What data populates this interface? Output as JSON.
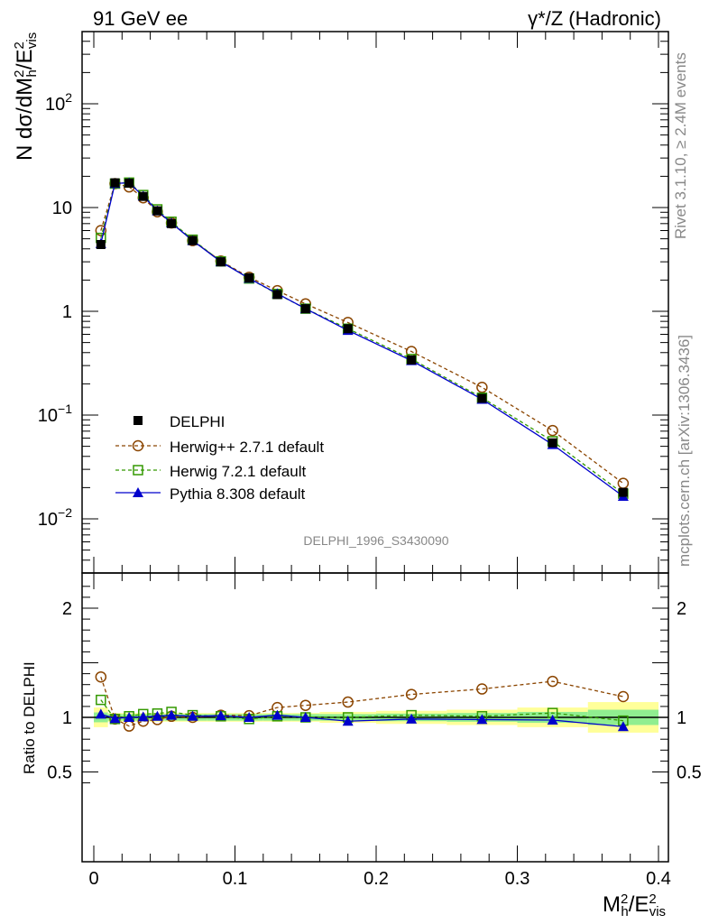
{
  "header": {
    "left": "91 GeV ee",
    "right": "γ*/Z (Hadronic)"
  },
  "side_text": {
    "rivet": "Rivet 3.1.10, ≥ 2.4M events",
    "mcplots": "mcplots.cern.ch [arXiv:1306.3436]"
  },
  "watermark": "DELPHI_1996_S3430090",
  "colors": {
    "delphi": "#000000",
    "herwigpp": "#8B4500",
    "herwig7": "#339900",
    "pythia": "#0000CC",
    "band_inner": "#90EE90",
    "band_outer": "#FFFF99"
  },
  "chart_data": [
    {
      "type": "line",
      "panel": "main",
      "yscale": "log",
      "ylabel": "N dσ/dM²h/E²vis",
      "xlim": [
        -0.01,
        0.4
      ],
      "ylim": [
        0.003,
        500
      ],
      "y_ticks": [
        "10⁻²",
        "10⁻¹",
        "1",
        "10",
        "10²"
      ],
      "x": [
        0.005,
        0.015,
        0.025,
        0.035,
        0.045,
        0.055,
        0.07,
        0.09,
        0.11,
        0.13,
        0.15,
        0.18,
        0.225,
        0.275,
        0.325,
        0.375
      ],
      "series": [
        {
          "name": "DELPHI",
          "marker": "filled-square",
          "values": [
            4.4,
            17.3,
            17.2,
            12.8,
            9.3,
            7.0,
            4.8,
            3.0,
            2.1,
            1.45,
            1.06,
            0.68,
            0.34,
            0.145,
            0.054,
            0.018
          ]
        },
        {
          "name": "Herwig++ 2.7.1 default",
          "marker": "open-circle",
          "values": [
            6.0,
            17.0,
            15.8,
            12.4,
            9.1,
            7.1,
            4.8,
            3.05,
            2.13,
            1.58,
            1.18,
            0.78,
            0.41,
            0.185,
            0.071,
            0.022
          ]
        },
        {
          "name": "Herwig 7.2.1 default",
          "marker": "open-square",
          "values": [
            5.1,
            17.0,
            17.4,
            13.2,
            9.6,
            7.3,
            4.9,
            3.03,
            2.07,
            1.47,
            1.06,
            0.68,
            0.347,
            0.147,
            0.056,
            0.0175
          ]
        },
        {
          "name": "Pythia 8.308 default",
          "marker": "filled-triangle",
          "values": [
            4.5,
            17.1,
            17.3,
            12.9,
            9.3,
            7.1,
            4.8,
            3.0,
            2.08,
            1.48,
            1.06,
            0.655,
            0.335,
            0.142,
            0.052,
            0.0165
          ]
        }
      ]
    },
    {
      "type": "line",
      "panel": "ratio",
      "ylabel": "Ratio to DELPHI",
      "xlabel": "M²h/E²vis",
      "xlim": [
        -0.01,
        0.4
      ],
      "ylim": [
        0.35,
        2.25
      ],
      "y_ticks": [
        "0.5",
        "1",
        "2"
      ],
      "x_ticks": [
        "0",
        "0.1",
        "0.2",
        "0.3",
        "0.4"
      ],
      "x": [
        0.005,
        0.015,
        0.025,
        0.035,
        0.045,
        0.055,
        0.07,
        0.09,
        0.11,
        0.13,
        0.15,
        0.18,
        0.225,
        0.275,
        0.325,
        0.375
      ],
      "bins": [
        0,
        0.01,
        0.02,
        0.03,
        0.04,
        0.05,
        0.06,
        0.08,
        0.1,
        0.12,
        0.14,
        0.16,
        0.2,
        0.25,
        0.3,
        0.35,
        0.4
      ],
      "band_inner": [
        0.045,
        0.03,
        0.03,
        0.03,
        0.03,
        0.03,
        0.03,
        0.03,
        0.03,
        0.03,
        0.03,
        0.03,
        0.035,
        0.04,
        0.05,
        0.07
      ],
      "band_outer": [
        0.09,
        0.04,
        0.04,
        0.04,
        0.04,
        0.04,
        0.04,
        0.04,
        0.04,
        0.04,
        0.04,
        0.05,
        0.06,
        0.07,
        0.09,
        0.14
      ],
      "series": [
        {
          "name": "Herwig++ 2.7.1 default",
          "marker": "open-circle",
          "values": [
            1.37,
            0.985,
            0.92,
            0.965,
            0.98,
            1.01,
            1.0,
            1.02,
            1.015,
            1.09,
            1.11,
            1.14,
            1.21,
            1.26,
            1.33,
            1.19
          ]
        },
        {
          "name": "Herwig 7.2.1 default",
          "marker": "open-square",
          "values": [
            1.16,
            0.985,
            1.01,
            1.03,
            1.035,
            1.05,
            1.02,
            1.01,
            0.985,
            1.01,
            1.0,
            1.0,
            1.02,
            1.01,
            1.04,
            0.97
          ]
        },
        {
          "name": "Pythia 8.308 default",
          "marker": "filled-triangle",
          "values": [
            1.03,
            0.99,
            1.0,
            1.005,
            1.01,
            1.02,
            1.01,
            1.015,
            1.0,
            1.02,
            1.0,
            0.965,
            0.985,
            0.98,
            0.975,
            0.915
          ]
        }
      ]
    }
  ]
}
